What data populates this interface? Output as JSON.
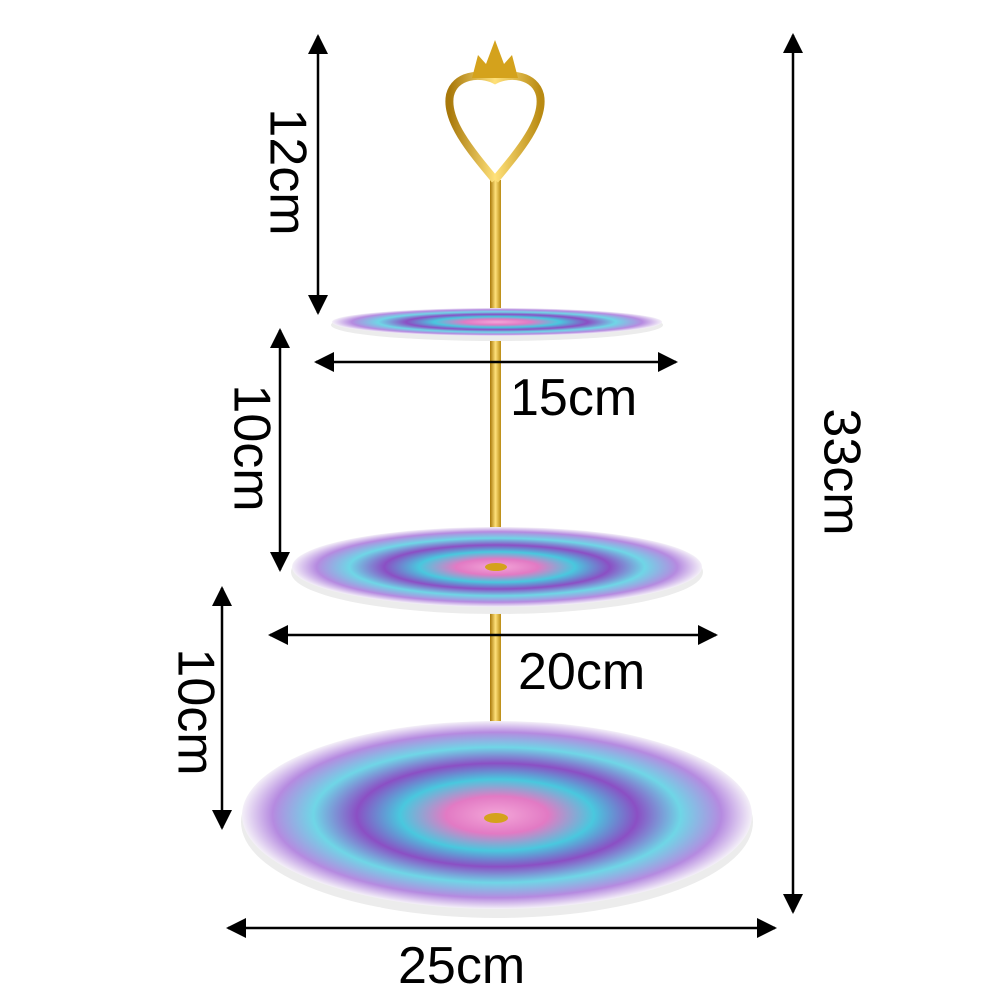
{
  "product": {
    "tiers": [
      {
        "name": "top",
        "width_label": "15cm",
        "height_label": "12cm"
      },
      {
        "name": "middle",
        "width_label": "20cm",
        "height_label": "10cm"
      },
      {
        "name": "bottom",
        "width_label": "25cm",
        "height_label": "10cm"
      }
    ],
    "total_height_label": "33cm"
  },
  "colors": {
    "gold": "#d4a21c",
    "cyan": "#49c8de",
    "purple": "#8b4fc4",
    "pink": "#e27ac4",
    "arrow": "#000000"
  }
}
